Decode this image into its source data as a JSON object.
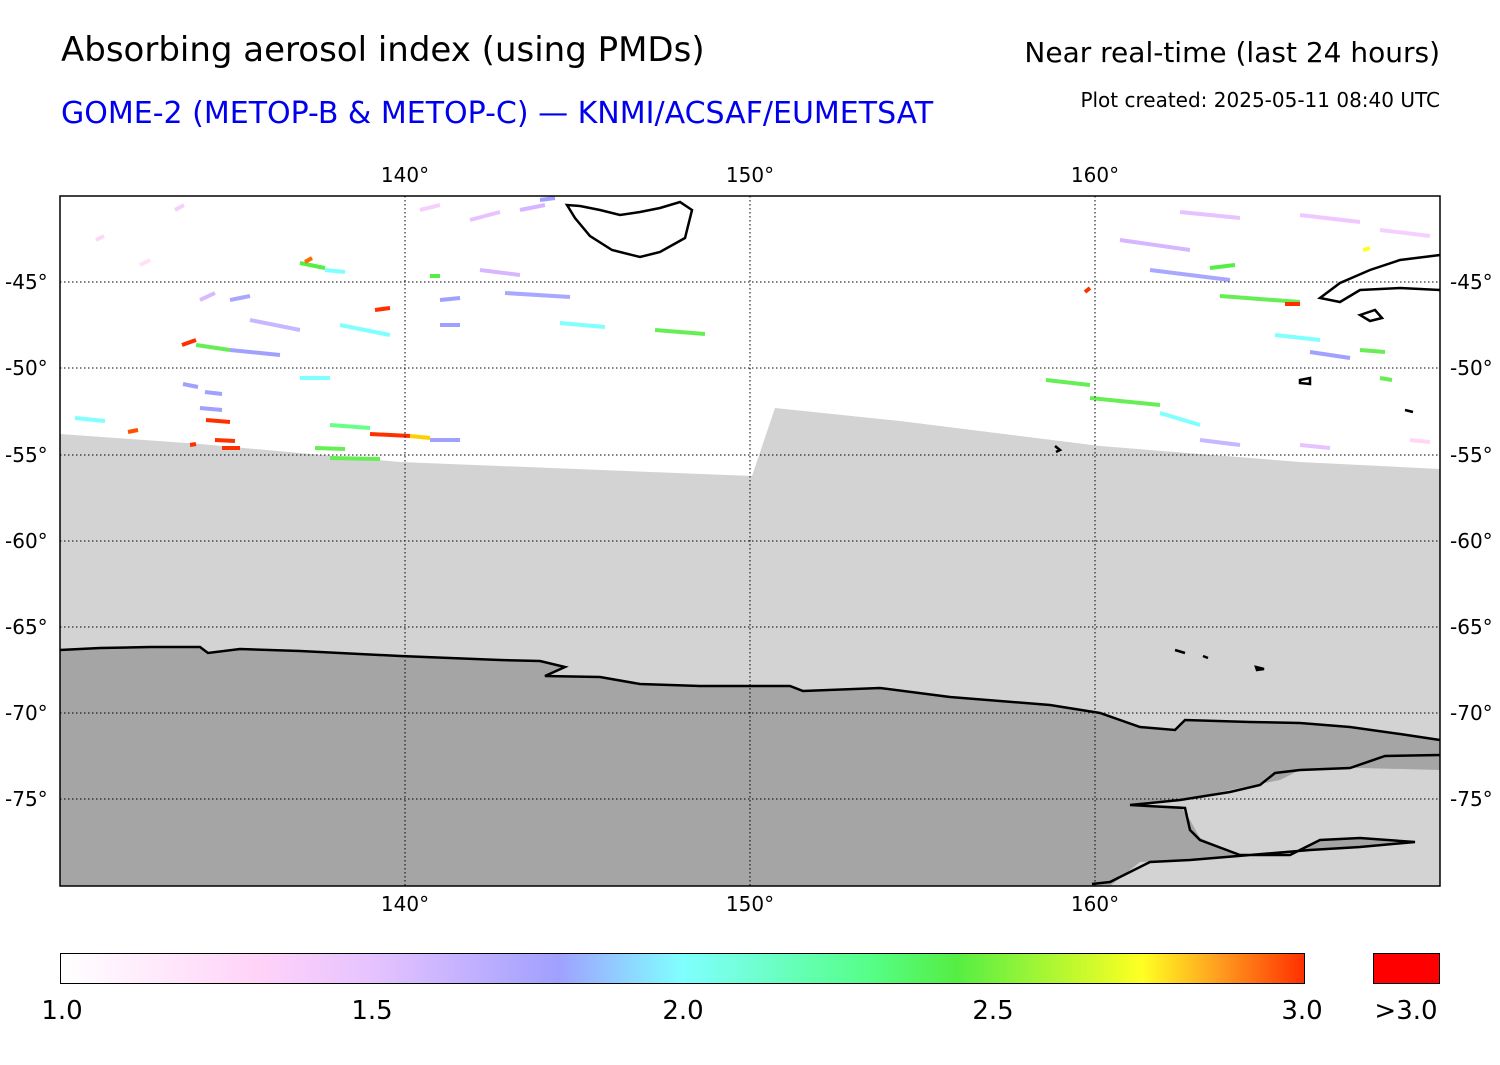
{
  "header": {
    "title": "Absorbing aerosol index (using PMDs)",
    "subtitle": "GOME-2 (METOP-B & METOP-C) — KNMI/ACSAF/EUMETSAT",
    "mode": "Near real-time (last 24 hours)",
    "created": "Plot created: 2025-05-11 08:40 UTC"
  },
  "map": {
    "lon_range": [
      130,
      170
    ],
    "lat_range": [
      -40,
      -80
    ],
    "lon_ticks": [
      "140°",
      "150°",
      "160°"
    ],
    "lat_ticks": [
      "-45°",
      "-50°",
      "-55°",
      "-60°",
      "-65°",
      "-70°",
      "-75°"
    ],
    "colors": {
      "no_data": "#d3d3d3",
      "land": "#a5a5a5",
      "ocean": "#ffffff",
      "coastline": "#000000"
    }
  },
  "colorbar": {
    "labels": [
      "1.0",
      "1.5",
      "2.0",
      "2.5",
      "3.0"
    ],
    "over_label": ">3.0",
    "min": 1.0,
    "max": 3.0,
    "over_color": "#ff0000"
  }
}
